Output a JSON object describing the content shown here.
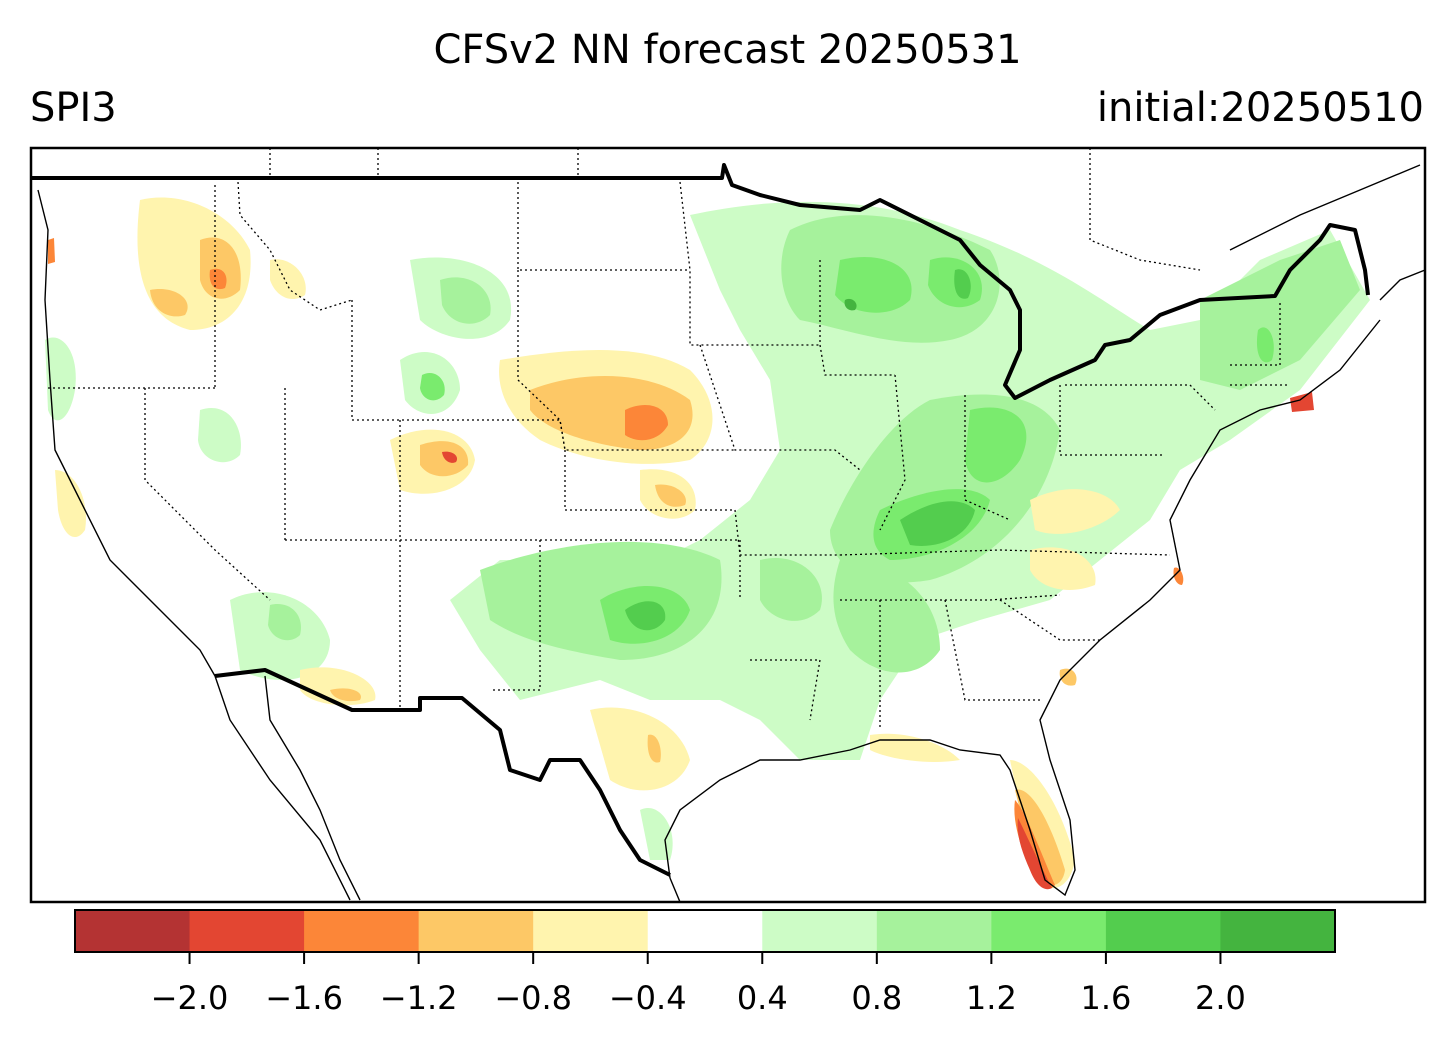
{
  "header": {
    "title": "CFSv2 NN forecast 20250531",
    "left_label": "SPI3",
    "right_label": "initial:20250510"
  },
  "colorbar": {
    "ticks": [
      "−2.0",
      "−1.6",
      "−1.2",
      "−0.8",
      "−0.4",
      "0.4",
      "0.8",
      "1.2",
      "1.6",
      "2.0"
    ],
    "tick_values": [
      -2.0,
      -1.6,
      -1.2,
      -0.8,
      -0.4,
      0.4,
      0.8,
      1.2,
      1.6,
      2.0
    ],
    "colors": [
      "#b43333",
      "#e34632",
      "#fc8638",
      "#fdc866",
      "#fff4ae",
      "#ffffff",
      "#cdfcc6",
      "#a6f29c",
      "#7aeb6e",
      "#53cd4e",
      "#44b43f"
    ]
  },
  "colors": {
    "border": "#000000",
    "dry_strong": "#e34632",
    "dry_moderate": "#fc8638",
    "dry_light": "#fdc866",
    "dry_weak": "#fff4ae",
    "wet_weak": "#cdfcc6",
    "wet_light": "#a6f29c",
    "wet_moderate": "#7aeb6e",
    "wet_strong": "#53cd4e"
  }
}
